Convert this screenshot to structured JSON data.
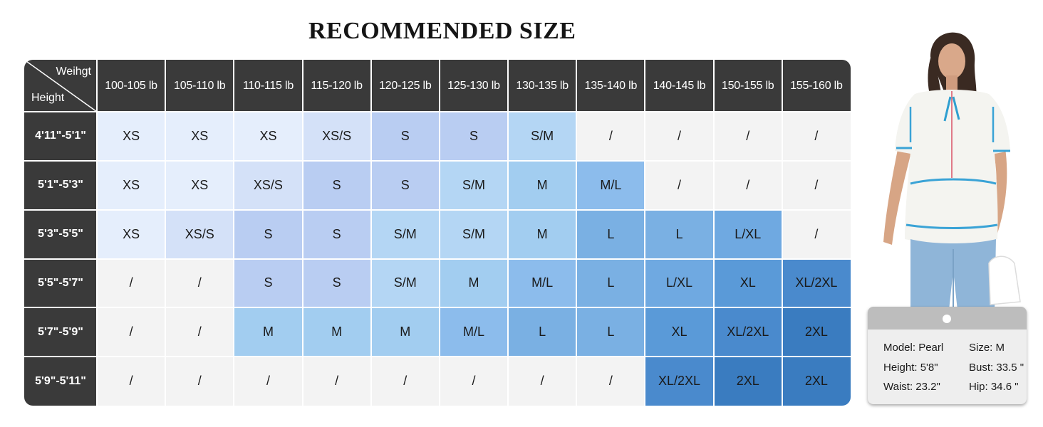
{
  "title": "RECOMMENDED SIZE",
  "corner": {
    "top_label": "Weihgt",
    "bottom_label": "Height"
  },
  "chart_data": {
    "type": "table",
    "title": "RECOMMENDED SIZE",
    "columns": [
      "100-105 lb",
      "105-110 lb",
      "110-115 lb",
      "115-120 lb",
      "120-125 lb",
      "125-130 lb",
      "130-135 lb",
      "135-140 lb",
      "140-145 lb",
      "150-155 lb",
      "155-160 lb"
    ],
    "rows": [
      {
        "label": "4'11\"-5'1\"",
        "values": [
          "XS",
          "XS",
          "XS",
          "XS/S",
          "S",
          "S",
          "S/M",
          "/",
          "/",
          "/",
          "/"
        ]
      },
      {
        "label": "5'1\"-5'3\"",
        "values": [
          "XS",
          "XS",
          "XS/S",
          "S",
          "S",
          "S/M",
          "M",
          "M/L",
          "/",
          "/",
          "/"
        ]
      },
      {
        "label": "5'3\"-5'5\"",
        "values": [
          "XS",
          "XS/S",
          "S",
          "S",
          "S/M",
          "S/M",
          "M",
          "L",
          "L",
          "L/XL",
          "/"
        ]
      },
      {
        "label": "5'5\"-5'7\"",
        "values": [
          "/",
          "/",
          "S",
          "S",
          "S/M",
          "M",
          "M/L",
          "L",
          "L/XL",
          "XL",
          "XL/2XL"
        ]
      },
      {
        "label": "5'7\"-5'9\"",
        "values": [
          "/",
          "/",
          "M",
          "M",
          "M",
          "M/L",
          "L",
          "L",
          "XL",
          "XL/2XL",
          "2XL"
        ]
      },
      {
        "label": "5'9\"-5'11\"",
        "values": [
          "/",
          "/",
          "/",
          "/",
          "/",
          "/",
          "/",
          "/",
          "XL/2XL",
          "2XL",
          "2XL"
        ]
      }
    ]
  },
  "size_colors": {
    "/": "#f3f3f3",
    "XS": "#e5eefc",
    "XS/S": "#d4e1f8",
    "S": "#b9cdf2",
    "S/M": "#b4d6f4",
    "M": "#a2cdf0",
    "M/L": "#8cbcec",
    "L": "#7ab0e3",
    "L/XL": "#6fa9e1",
    "XL": "#5a9ad8",
    "XL/2XL": "#4a8acd",
    "2XL": "#3a7cc0"
  },
  "header_color": "#3a3a3a",
  "model": {
    "name": "Model: Pearl",
    "size": "Size: M",
    "height": "Height: 5'8\"",
    "bust": "Bust: 33.5 \"",
    "waist": "Waist: 23.2\"",
    "hip": "Hip: 34.6 \""
  }
}
